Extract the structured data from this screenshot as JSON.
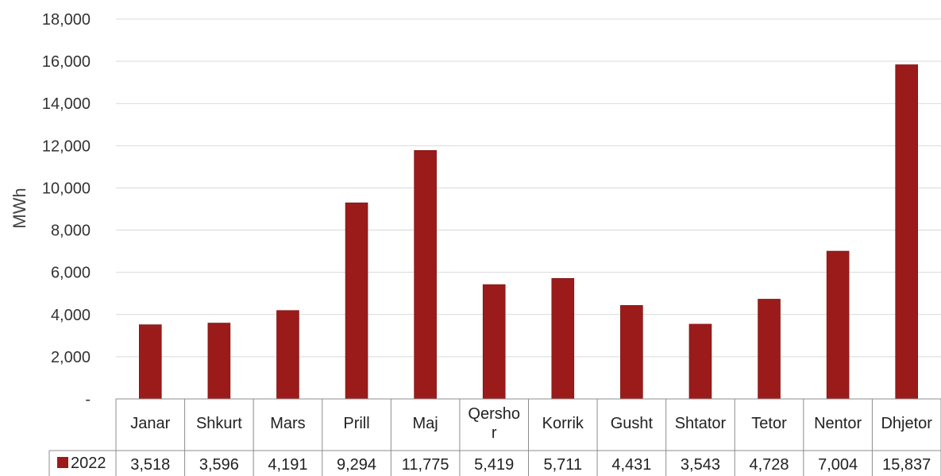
{
  "chart_data": {
    "type": "bar",
    "ylabel": "MWh",
    "ylim": [
      0,
      18000
    ],
    "yticks": [
      "-",
      "2,000",
      "4,000",
      "6,000",
      "8,000",
      "10,000",
      "12,000",
      "14,000",
      "16,000",
      "18,000"
    ],
    "grid": true,
    "categories": [
      "Janar",
      "Shkurt",
      "Mars",
      "Prill",
      "Maj",
      "Qersho\nr",
      "Korrik",
      "Gusht",
      "Shtator",
      "Tetor",
      "Nentor",
      "Dhjetor"
    ],
    "series": [
      {
        "name": "2022",
        "color": "#9b1b1b",
        "values": [
          3518,
          3596,
          4191,
          9294,
          11775,
          5419,
          5711,
          4431,
          3543,
          4728,
          7004,
          15837
        ],
        "labels": [
          "3,518",
          "3,596",
          "4,191",
          "9,294",
          "11,775",
          "5,419",
          "5,711",
          "4,431",
          "3,543",
          "4,728",
          "7,004",
          "15,837"
        ]
      }
    ],
    "legend": "data-table"
  }
}
